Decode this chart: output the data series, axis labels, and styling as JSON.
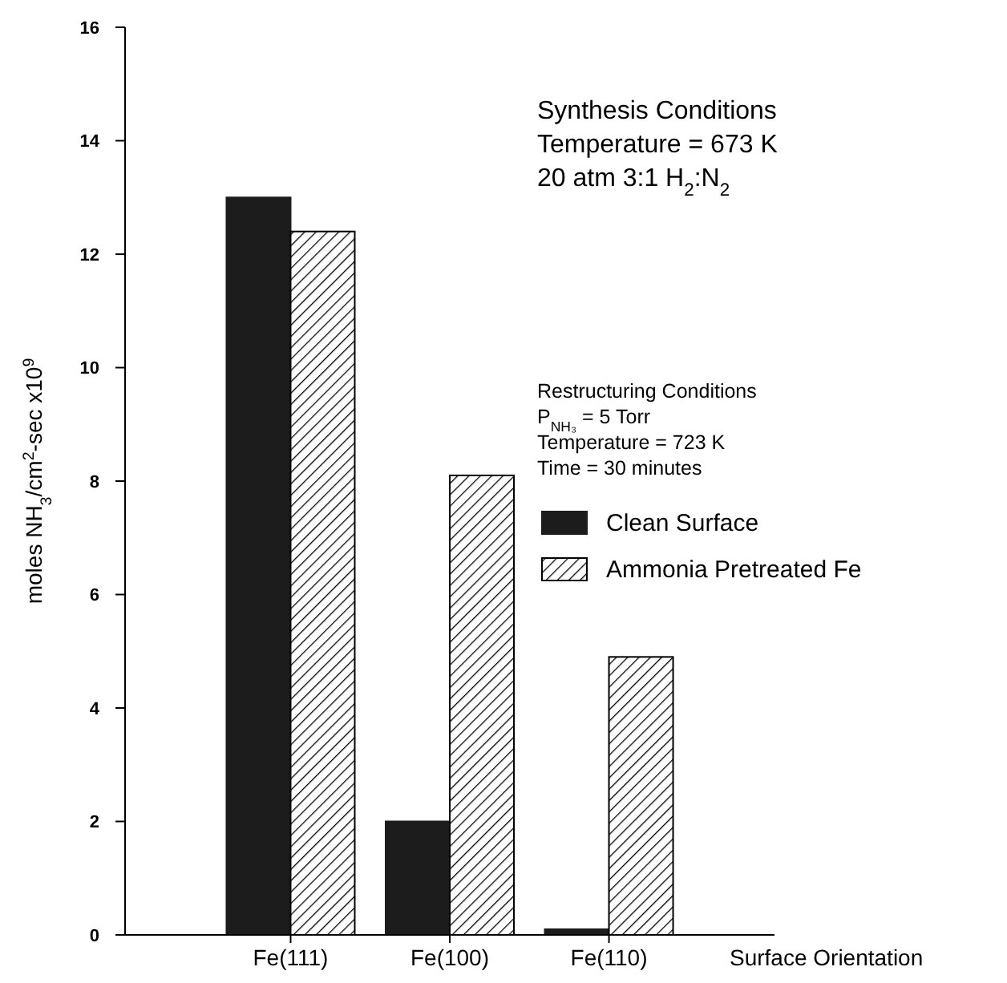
{
  "chart_data": {
    "type": "bar",
    "categories": [
      "Fe(111)",
      "Fe(100)",
      "Fe(110)"
    ],
    "xlabel": "Surface Orientation",
    "ylabel": "moles NH$_{3}$/cm$^{2}$-sec x10$^{9}$",
    "series": [
      {
        "name": "Clean Surface",
        "color": "#1c1c1c",
        "values": [
          13.0,
          2.0,
          0.1
        ]
      },
      {
        "name": "Ammonia Pretreated Fe",
        "color": "#000000",
        "values": [
          12.4,
          8.1,
          4.9
        ]
      }
    ],
    "ylim": [
      0,
      16
    ],
    "yticks": [
      0,
      2,
      4,
      6,
      8,
      10,
      12,
      14,
      16
    ],
    "grid": false,
    "legend": "right",
    "annotations": [
      "Synthesis Conditions\nTemperature = 673 K\n20 atm 3:1 H$_{2}$:N$_{2}$",
      "Restructuring Conditions\nP$_{NH₃}$ = 5 Torr\nTemperature = 723 K\nTime = 30 minutes"
    ]
  }
}
